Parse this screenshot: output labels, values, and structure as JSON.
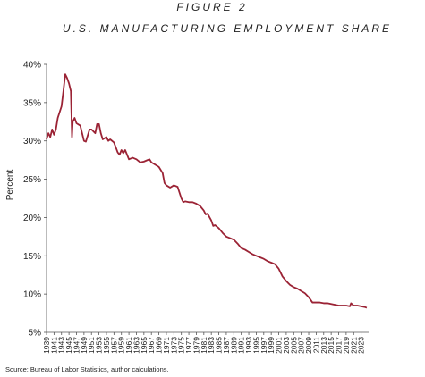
{
  "chart_data": {
    "type": "line",
    "title": "FIGURE 2",
    "subtitle": "U.S. MANUFACTURING EMPLOYMENT SHARE",
    "ylabel": "Percent",
    "note": "Source: Bureau of Labor Statistics, author calculations.",
    "xlim": [
      1939,
      2025
    ],
    "ylim": [
      5,
      40
    ],
    "yticks": [
      {
        "value": 5,
        "label": "5%"
      },
      {
        "value": 10,
        "label": "10%"
      },
      {
        "value": 15,
        "label": "15%"
      },
      {
        "value": 20,
        "label": "20%"
      },
      {
        "value": 25,
        "label": "25%"
      },
      {
        "value": 30,
        "label": "30%"
      },
      {
        "value": 35,
        "label": "35%"
      },
      {
        "value": 40,
        "label": "40%"
      }
    ],
    "xticks": [
      1939,
      1941,
      1943,
      1945,
      1947,
      1949,
      1951,
      1953,
      1955,
      1957,
      1959,
      1961,
      1963,
      1965,
      1967,
      1969,
      1971,
      1973,
      1975,
      1977,
      1979,
      1981,
      1983,
      1985,
      1987,
      1989,
      1991,
      1993,
      1995,
      1997,
      1999,
      2001,
      2003,
      2005,
      2007,
      2009,
      2011,
      2013,
      2015,
      2017,
      2019,
      2021,
      2023
    ],
    "grid": false,
    "x": [
      1939,
      1939.5,
      1940,
      1940.5,
      1941,
      1941.5,
      1942,
      1943,
      1943.5,
      1944,
      1944.5,
      1945,
      1945.5,
      1945.8,
      1946,
      1946.5,
      1947,
      1948,
      1948.5,
      1949,
      1949.5,
      1950,
      1950.5,
      1951,
      1952,
      1952.5,
      1953,
      1953.5,
      1954,
      1955,
      1955.5,
      1956,
      1957,
      1958,
      1958.5,
      1959,
      1959.5,
      1960,
      1960.5,
      1961,
      1962,
      1963,
      1964,
      1965,
      1966,
      1966.5,
      1967,
      1968,
      1969,
      1970,
      1970.5,
      1971,
      1972,
      1973,
      1974,
      1975,
      1975.5,
      1976,
      1977,
      1978,
      1979,
      1980,
      1981,
      1981.5,
      1982,
      1983,
      1983.5,
      1984,
      1985,
      1986,
      1987,
      1988,
      1989,
      1990,
      1991,
      1992,
      1993,
      1994,
      1995,
      1996,
      1997,
      1998,
      1999,
      2000,
      2001,
      2002,
      2003,
      2004,
      2005,
      2006,
      2007,
      2008,
      2009,
      2010,
      2011,
      2012,
      2013,
      2014,
      2015,
      2016,
      2017,
      2018,
      2019,
      2020,
      2020.3,
      2021,
      2022,
      2023,
      2024,
      2024.5
    ],
    "series": [
      {
        "name": "Manufacturing employment share",
        "color": "#9b2335",
        "values": [
          30.2,
          31,
          30.5,
          31.5,
          30.8,
          31.5,
          33,
          34.5,
          36.5,
          38.7,
          38.2,
          37.5,
          36.5,
          30.5,
          32.5,
          33,
          32.3,
          32,
          31,
          30,
          29.9,
          30.7,
          31.5,
          31.5,
          31,
          32.2,
          32.2,
          31,
          30.2,
          30.5,
          30,
          30.2,
          29.8,
          28.5,
          28.2,
          28.8,
          28.4,
          28.8,
          28.2,
          27.6,
          27.8,
          27.6,
          27.2,
          27.3,
          27.5,
          27.6,
          27.2,
          26.9,
          26.6,
          25.8,
          24.5,
          24.2,
          23.9,
          24.2,
          24,
          22.5,
          22,
          22.1,
          22,
          22,
          21.8,
          21.5,
          20.9,
          20.4,
          20.5,
          19.6,
          18.9,
          19,
          18.6,
          18,
          17.5,
          17.3,
          17.1,
          16.6,
          16,
          15.8,
          15.5,
          15.2,
          15,
          14.8,
          14.6,
          14.3,
          14.1,
          13.9,
          13.3,
          12.3,
          11.7,
          11.2,
          10.9,
          10.7,
          10.4,
          10.1,
          9.6,
          8.9,
          8.9,
          8.9,
          8.8,
          8.8,
          8.7,
          8.6,
          8.5,
          8.5,
          8.5,
          8.4,
          8.8,
          8.5,
          8.5,
          8.4,
          8.3,
          8.2
        ]
      }
    ]
  }
}
